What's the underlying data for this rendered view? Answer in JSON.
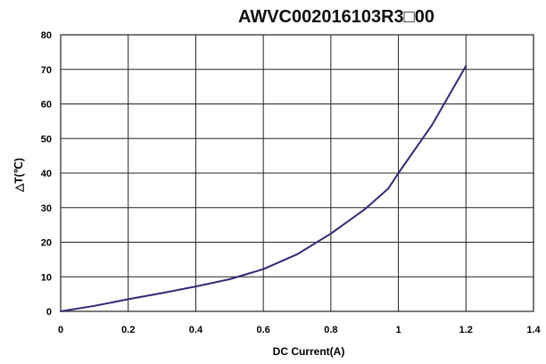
{
  "chart_data": {
    "type": "line",
    "title": "AWVC002016103R3□00",
    "xlabel": "DC Current(A)",
    "ylabel": "△T(℃)",
    "xlim": [
      0,
      1.4
    ],
    "ylim": [
      0,
      80
    ],
    "x_ticks": [
      "0",
      "0.2",
      "0.4",
      "0.6",
      "0.8",
      "1",
      "1.2",
      "1.4"
    ],
    "y_ticks": [
      "0",
      "10",
      "20",
      "30",
      "40",
      "50",
      "60",
      "70",
      "80"
    ],
    "grid": true,
    "legend": false,
    "series": [
      {
        "color": "#2e2a78",
        "x": [
          0,
          0.1,
          0.2,
          0.3,
          0.4,
          0.5,
          0.6,
          0.7,
          0.8,
          0.9,
          0.97,
          1.0,
          1.1,
          1.2
        ],
        "y": [
          0,
          1.6,
          3.5,
          5.3,
          7.2,
          9.3,
          12.2,
          16.5,
          22.5,
          29.5,
          35.5,
          40,
          54,
          71
        ]
      }
    ]
  }
}
